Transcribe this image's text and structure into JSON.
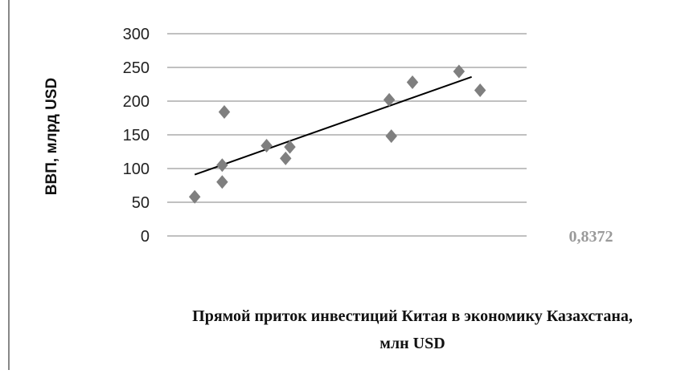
{
  "chart_data": {
    "type": "scatter",
    "title": "",
    "xlabel_lines": [
      "Прямой приток инвестиций Китая в экономику Казахстана,",
      "млн USD"
    ],
    "ylabel": "ВВП, млрд USD",
    "ylim": [
      0,
      300
    ],
    "xlim": [
      0,
      17
    ],
    "yticks": [
      "0",
      "50",
      "100",
      "150",
      "200",
      "250",
      "300"
    ],
    "grid": true,
    "marker": "diamond",
    "colors": {
      "points": "#7f7f7f",
      "trendline": "#000000",
      "grid": "#9a9a9a"
    },
    "annotation": "0,8372",
    "points": [
      {
        "x": 1.3,
        "y": 58
      },
      {
        "x": 2.6,
        "y": 105
      },
      {
        "x": 2.6,
        "y": 80
      },
      {
        "x": 2.7,
        "y": 184
      },
      {
        "x": 4.7,
        "y": 134
      },
      {
        "x": 5.6,
        "y": 115
      },
      {
        "x": 5.8,
        "y": 132
      },
      {
        "x": 10.5,
        "y": 202
      },
      {
        "x": 10.6,
        "y": 148
      },
      {
        "x": 11.6,
        "y": 228
      },
      {
        "x": 13.8,
        "y": 244
      },
      {
        "x": 14.8,
        "y": 216
      }
    ],
    "trendline": {
      "x": [
        1.3,
        14.4
      ],
      "y": [
        91,
        236
      ]
    }
  }
}
